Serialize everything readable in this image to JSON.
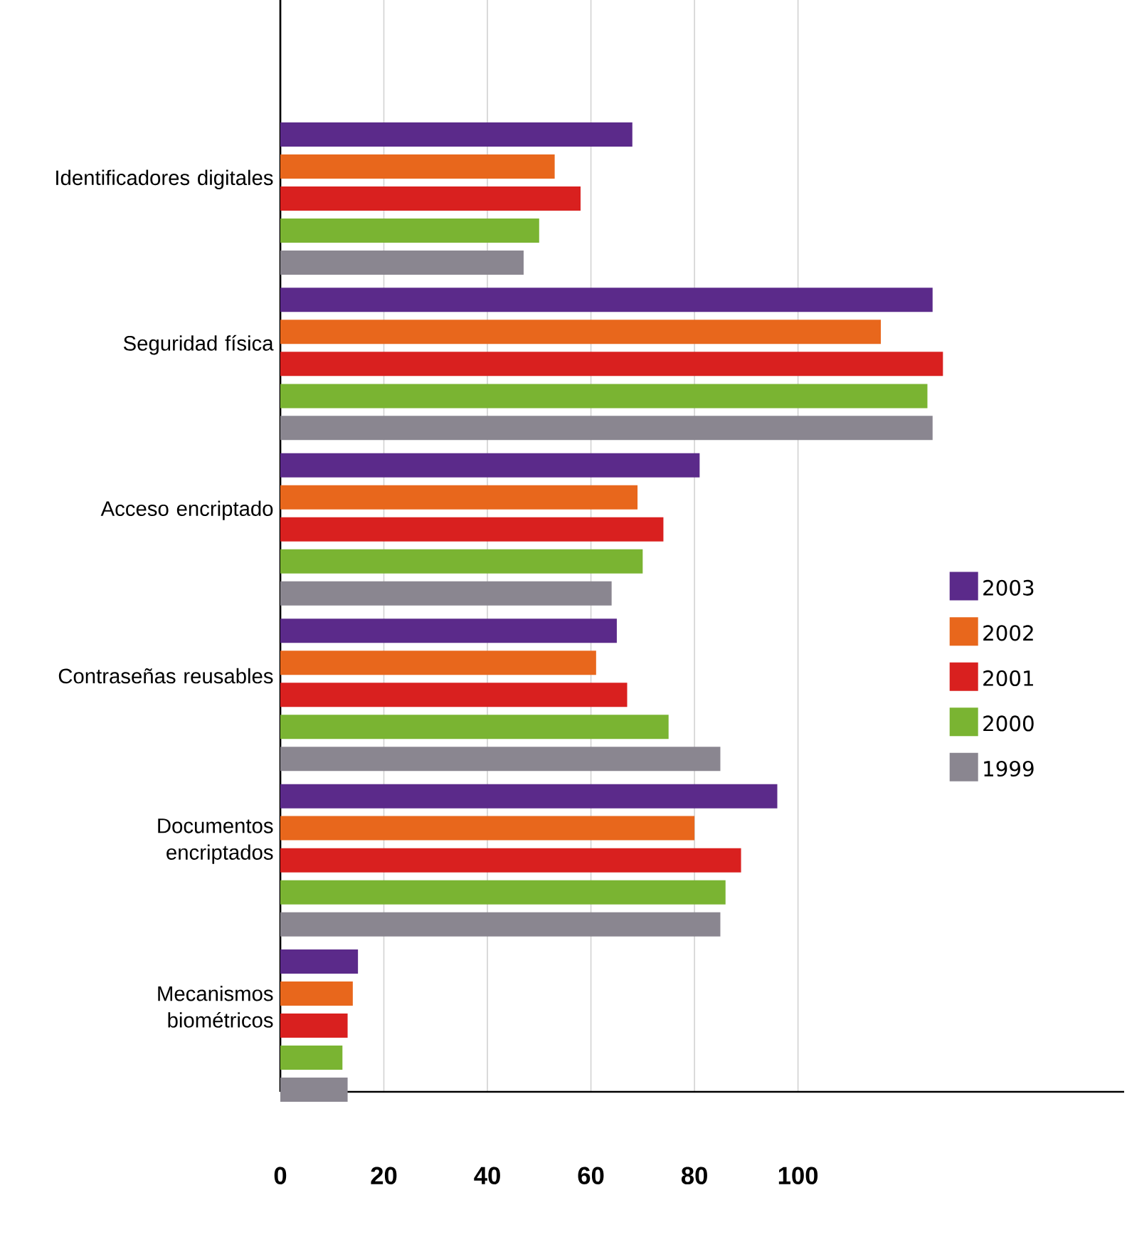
{
  "chart_data": {
    "type": "bar",
    "orientation": "horizontal",
    "categories": [
      "Identificadores digitales",
      "Seguridad física",
      "Acceso encriptado",
      "Contraseñas reusables",
      "Documentos encriptados",
      "Mecanismos biométricos"
    ],
    "series": [
      {
        "name": "2003",
        "color": "#5b2a8a",
        "values": [
          68,
          126,
          81,
          65,
          96,
          15
        ]
      },
      {
        "name": "2002",
        "color": "#e8671c",
        "values": [
          53,
          116,
          69,
          61,
          80,
          14
        ]
      },
      {
        "name": "2001",
        "color": "#d9201f",
        "values": [
          58,
          128,
          74,
          67,
          89,
          13
        ]
      },
      {
        "name": "2000",
        "color": "#7ab432",
        "values": [
          50,
          125,
          70,
          75,
          86,
          12
        ]
      },
      {
        "name": "1999",
        "color": "#8a8690",
        "values": [
          47,
          126,
          64,
          85,
          85,
          13
        ]
      }
    ],
    "xlim": [
      0,
      163
    ],
    "xticks": [
      0,
      20,
      40,
      60,
      80,
      100
    ],
    "grid": "x",
    "legend": "right"
  }
}
